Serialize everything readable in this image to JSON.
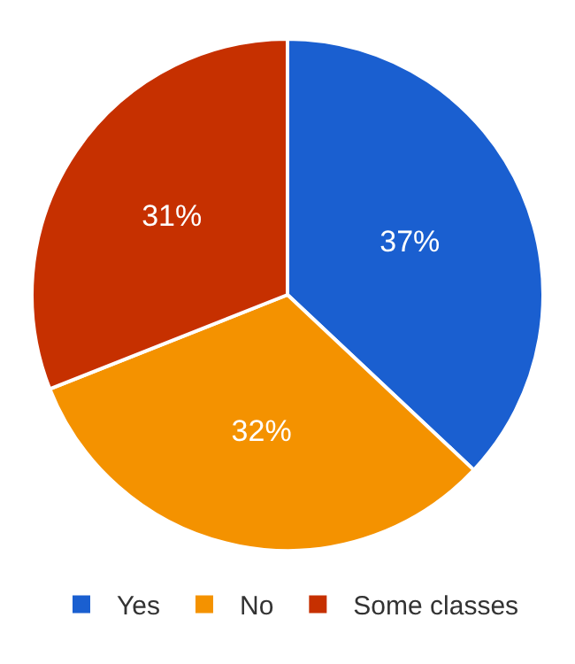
{
  "chart_data": {
    "type": "pie",
    "categories": [
      "Yes",
      "No",
      "Some classes"
    ],
    "values": [
      37,
      32,
      31
    ],
    "colors": [
      "#1a5fd0",
      "#f49200",
      "#c63000"
    ],
    "value_labels": [
      "37%",
      "32%",
      "31%"
    ],
    "legend": "bottom"
  }
}
